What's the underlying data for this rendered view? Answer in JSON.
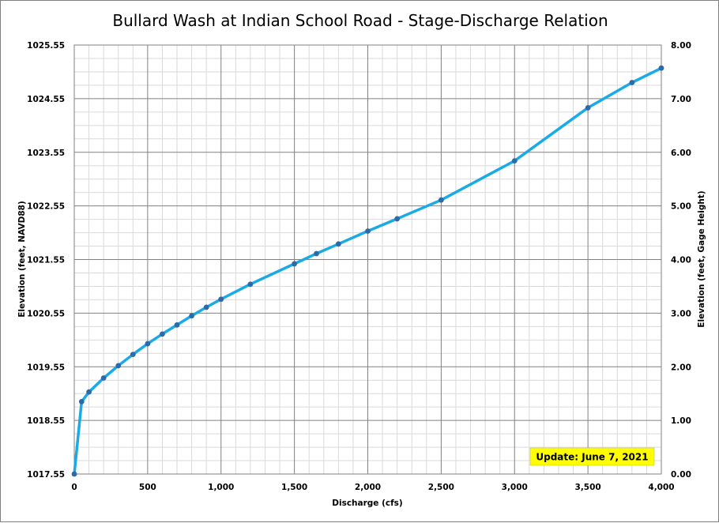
{
  "chart_data": {
    "type": "line",
    "title": "Bullard Wash at Indian School Road - Stage-Discharge Relation",
    "xlabel": "Discharge  (cfs)",
    "ylabel_left": "Elevation (feet, NAVD88)",
    "ylabel_right": "Elevation (feet, Gage Height)",
    "xlim": [
      0,
      4000
    ],
    "ylim_left": [
      1017.55,
      1025.55
    ],
    "ylim_right": [
      0.0,
      8.0
    ],
    "x_ticks": [
      "0",
      "500",
      "1,000",
      "1,500",
      "2,000",
      "2,500",
      "3,000",
      "3,500",
      "4,000"
    ],
    "y_ticks_left": [
      "1017.55",
      "1018.55",
      "1019.55",
      "1020.55",
      "1021.55",
      "1022.55",
      "1023.55",
      "1024.55",
      "1025.55"
    ],
    "y_ticks_right": [
      "0.00",
      "1.00",
      "2.00",
      "3.00",
      "4.00",
      "5.00",
      "6.00",
      "7.00",
      "8.00"
    ],
    "grid": true,
    "series": [
      {
        "x": [
          0,
          50,
          100,
          200,
          300,
          400,
          500,
          600,
          700,
          800,
          900,
          1000,
          1200,
          1500,
          1650,
          1800,
          2000,
          2200,
          2500,
          3000,
          3500,
          3800,
          4000
        ],
        "y": [
          0.0,
          1.35,
          1.53,
          1.79,
          2.02,
          2.23,
          2.43,
          2.61,
          2.78,
          2.95,
          3.11,
          3.26,
          3.54,
          3.92,
          4.11,
          4.29,
          4.53,
          4.76,
          5.11,
          5.84,
          6.83,
          7.3,
          7.57
        ],
        "color": "#1aabe6",
        "marker_color": "#2e6aa8"
      }
    ],
    "annotation": {
      "text": "Update: June 7, 2021",
      "background": "#ffff00"
    },
    "colors": {
      "grid_major": "#808080",
      "grid_minor": "#d9d9d9"
    }
  }
}
